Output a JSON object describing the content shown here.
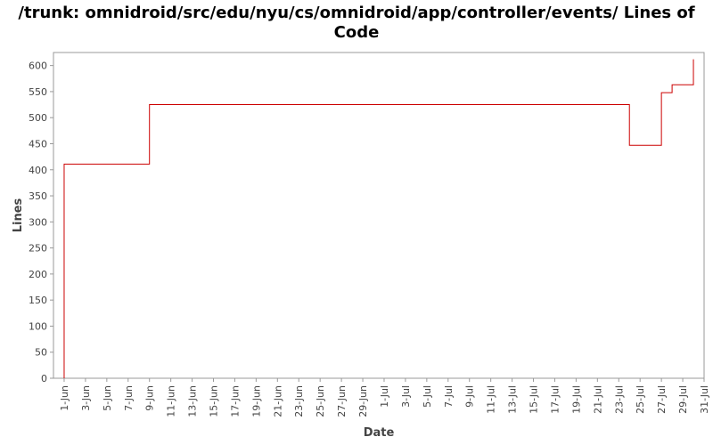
{
  "chart_data": {
    "type": "line",
    "title": "/trunk: omnidroid/src/edu/nyu/cs/omnidroid/app/controller/events/ Lines of Code",
    "xlabel": "Date",
    "ylabel": "Lines",
    "ylim": [
      0,
      625
    ],
    "xlim": [
      "2008-05-31",
      "2008-07-31"
    ],
    "y_ticks": [
      0,
      50,
      100,
      150,
      200,
      250,
      300,
      350,
      400,
      450,
      500,
      550,
      600
    ],
    "x_ticks": [
      {
        "date": "2008-06-01",
        "label": "1-Jun"
      },
      {
        "date": "2008-06-03",
        "label": "3-Jun"
      },
      {
        "date": "2008-06-05",
        "label": "5-Jun"
      },
      {
        "date": "2008-06-07",
        "label": "7-Jun"
      },
      {
        "date": "2008-06-09",
        "label": "9-Jun"
      },
      {
        "date": "2008-06-11",
        "label": "11-Jun"
      },
      {
        "date": "2008-06-13",
        "label": "13-Jun"
      },
      {
        "date": "2008-06-15",
        "label": "15-Jun"
      },
      {
        "date": "2008-06-17",
        "label": "17-Jun"
      },
      {
        "date": "2008-06-19",
        "label": "19-Jun"
      },
      {
        "date": "2008-06-21",
        "label": "21-Jun"
      },
      {
        "date": "2008-06-23",
        "label": "23-Jun"
      },
      {
        "date": "2008-06-25",
        "label": "25-Jun"
      },
      {
        "date": "2008-06-27",
        "label": "27-Jun"
      },
      {
        "date": "2008-06-29",
        "label": "29-Jun"
      },
      {
        "date": "2008-07-01",
        "label": "1-Jul"
      },
      {
        "date": "2008-07-03",
        "label": "3-Jul"
      },
      {
        "date": "2008-07-05",
        "label": "5-Jul"
      },
      {
        "date": "2008-07-07",
        "label": "7-Jul"
      },
      {
        "date": "2008-07-09",
        "label": "9-Jul"
      },
      {
        "date": "2008-07-11",
        "label": "11-Jul"
      },
      {
        "date": "2008-07-13",
        "label": "13-Jul"
      },
      {
        "date": "2008-07-15",
        "label": "15-Jul"
      },
      {
        "date": "2008-07-17",
        "label": "17-Jul"
      },
      {
        "date": "2008-07-19",
        "label": "19-Jul"
      },
      {
        "date": "2008-07-21",
        "label": "21-Jul"
      },
      {
        "date": "2008-07-23",
        "label": "23-Jul"
      },
      {
        "date": "2008-07-25",
        "label": "25-Jul"
      },
      {
        "date": "2008-07-27",
        "label": "27-Jul"
      },
      {
        "date": "2008-07-29",
        "label": "29-Jul"
      },
      {
        "date": "2008-07-31",
        "label": "31-Jul"
      }
    ],
    "series": [
      {
        "color": "#cc0000",
        "step": true,
        "points": [
          {
            "x": "2008-06-01",
            "y": 0
          },
          {
            "x": "2008-06-01",
            "y": 411
          },
          {
            "x": "2008-06-09",
            "y": 525
          },
          {
            "x": "2008-07-24",
            "y": 447
          },
          {
            "x": "2008-07-27",
            "y": 548
          },
          {
            "x": "2008-07-28",
            "y": 563
          },
          {
            "x": "2008-07-30",
            "y": 612
          }
        ]
      }
    ],
    "grid": false,
    "legend": "none"
  }
}
